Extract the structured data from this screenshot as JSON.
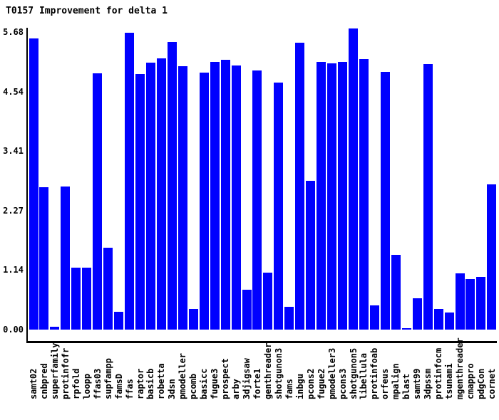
{
  "window": {
    "background": "#ffffff"
  },
  "chart_data": {
    "type": "bar",
    "title": "T0157 Improvement for delta 1",
    "xlabel": "",
    "ylabel": "",
    "ylim": [
      0,
      5.68
    ],
    "grid": false,
    "legend": null,
    "bar_color": "#0000ff",
    "axis_color": "#000000",
    "text_color": "#000000",
    "y_tick_labels": [
      "0.00",
      "1.14",
      "2.27",
      "3.41",
      "4.54",
      "5.68"
    ],
    "categories": [
      "samt02",
      "cnbpred",
      "superfamily",
      "protinfofr",
      "rpfold",
      "loopp",
      "ffas03",
      "supfampp",
      "famsD",
      "ffas",
      "raptor",
      "basicb",
      "robetta",
      "3dsn",
      "pmodeller",
      "pcomb",
      "basicc",
      "fugue3",
      "prospect",
      "arby",
      "3djigsaw",
      "forte1",
      "genthreader",
      "shotgunon3",
      "fams",
      "inbgu",
      "pcons2",
      "fugue2",
      "pmodeller3",
      "pcons3",
      "shotgunon5",
      "libellula",
      "protinfoab",
      "orfeus",
      "mpalign",
      "blast",
      "samt99",
      "3dpssm",
      "protinfocm",
      "tsunami",
      "mgenthreader",
      "cmappro",
      "pdgCon",
      "cornet"
    ],
    "values": [
      5.56,
      2.72,
      0.05,
      2.74,
      1.18,
      1.18,
      4.9,
      1.56,
      0.34,
      5.68,
      4.89,
      5.1,
      5.19,
      5.49,
      5.03,
      0.39,
      4.91,
      5.11,
      5.16,
      5.05,
      0.76,
      4.95,
      1.09,
      4.72,
      0.43,
      5.48,
      2.84,
      5.11,
      5.09,
      5.11,
      5.76,
      5.17,
      0.46,
      4.92,
      1.43,
      0.03,
      0.6,
      5.08,
      0.4,
      0.32,
      1.08,
      0.96,
      1.01,
      2.78
    ]
  }
}
